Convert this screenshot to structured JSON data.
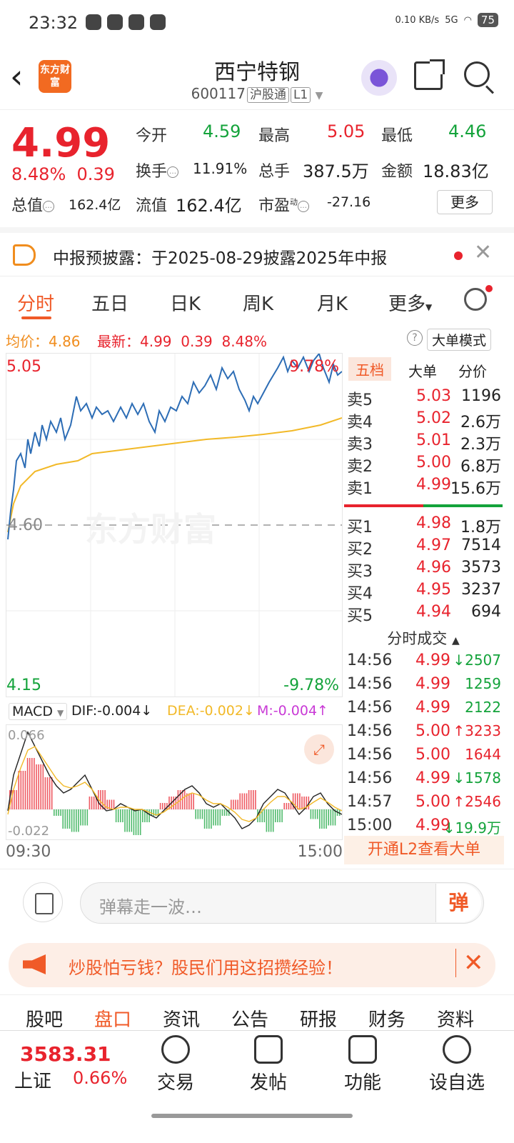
{
  "statusbar": {
    "time": "23:32",
    "net": "0.10 KB/s",
    "signal": "5G",
    "battery": "75"
  },
  "header": {
    "logo_text": "东方财富",
    "title": "西宁特钢",
    "code": "600117",
    "badge1": "沪股通",
    "badge2": "L1"
  },
  "quote": {
    "price": "4.99",
    "pct": "8.48%",
    "change": "0.39",
    "open_label": "今开",
    "open": "4.59",
    "high_label": "最高",
    "high": "5.05",
    "low_label": "最低",
    "low": "4.46",
    "turnover_label": "换手",
    "turnover": "11.91%",
    "volume_label": "总手",
    "volume": "387.5万",
    "amount_label": "金额",
    "amount": "18.83亿",
    "mcap_label": "总值",
    "mcap": "162.4亿",
    "float_label": "流值",
    "float": "162.4亿",
    "pe_label": "市盈",
    "pe_sup": "动",
    "pe": "-27.16",
    "more": "更多"
  },
  "notice": {
    "text": "中报预披露：于2025-08-29披露2025年中报"
  },
  "tabs": [
    "分时",
    "五日",
    "日K",
    "周K",
    "月K",
    "更多"
  ],
  "infoline": {
    "avg_label": "均价：",
    "avg": "4.86",
    "latest_label": "最新：",
    "latest": "4.99",
    "chg": "0.39",
    "pct": "8.48%",
    "bigmode": "大单模式"
  },
  "chart_labels": {
    "ymax": "5.05",
    "ymid": "4.60",
    "ymin": "4.15",
    "pmax": "9.78%",
    "pmin": "-9.78%",
    "watermark": "东方财富"
  },
  "macd": {
    "name": "MACD",
    "dif": "DIF:-0.004",
    "dea": "DEA:-0.002",
    "m": "M:-0.004",
    "top": "0.066",
    "bottom": "-0.022"
  },
  "time_axis": {
    "start": "09:30",
    "end": "15:00"
  },
  "book": {
    "tabs": [
      "五档",
      "大单",
      "分价"
    ],
    "asks": [
      {
        "k": "卖5",
        "p": "5.03",
        "v": "1196"
      },
      {
        "k": "卖4",
        "p": "5.02",
        "v": "2.6万"
      },
      {
        "k": "卖3",
        "p": "5.01",
        "v": "2.3万"
      },
      {
        "k": "卖2",
        "p": "5.00",
        "v": "6.8万"
      },
      {
        "k": "卖1",
        "p": "4.99",
        "v": "15.6万"
      }
    ],
    "bids": [
      {
        "k": "买1",
        "p": "4.98",
        "v": "1.8万"
      },
      {
        "k": "买2",
        "p": "4.97",
        "v": "7514"
      },
      {
        "k": "买3",
        "p": "4.96",
        "v": "3573"
      },
      {
        "k": "买4",
        "p": "4.95",
        "v": "3237"
      },
      {
        "k": "买5",
        "p": "4.94",
        "v": "694"
      }
    ],
    "ticks_title": "分时成交",
    "ticks": [
      {
        "t": "14:56",
        "p": "4.99",
        "v": "↓2507",
        "c": "green"
      },
      {
        "t": "14:56",
        "p": "4.99",
        "v": "1259",
        "c": "green"
      },
      {
        "t": "14:56",
        "p": "4.99",
        "v": "2122",
        "c": "green"
      },
      {
        "t": "14:56",
        "p": "5.00",
        "v": "↑3233",
        "c": "red"
      },
      {
        "t": "14:56",
        "p": "5.00",
        "v": "1644",
        "c": "red"
      },
      {
        "t": "14:56",
        "p": "4.99",
        "v": "↓1578",
        "c": "green"
      },
      {
        "t": "14:57",
        "p": "5.00",
        "v": "↑2546",
        "c": "red"
      },
      {
        "t": "15:00",
        "p": "4.99",
        "v": "↓19.9万",
        "c": "green"
      }
    ],
    "l2": "开通L2查看大单"
  },
  "comment": {
    "placeholder": "弹幕走一波…",
    "dan": "弹"
  },
  "ad": {
    "text": "炒股怕亏钱？股民们用这招攒经验！"
  },
  "subtabs": [
    "股吧",
    "盘口",
    "资讯",
    "公告",
    "研报",
    "财务",
    "资料"
  ],
  "bottom": {
    "index_value": "3583.31",
    "index_name": "上证",
    "index_pct": "0.66%",
    "nav": [
      "交易",
      "发帖",
      "功能",
      "设自选"
    ]
  },
  "colors": {
    "accent": "#f05a28",
    "up": "#e8232d",
    "down": "#14a33b",
    "avg_line": "#f2b928",
    "price_line": "#2d6db5"
  }
}
